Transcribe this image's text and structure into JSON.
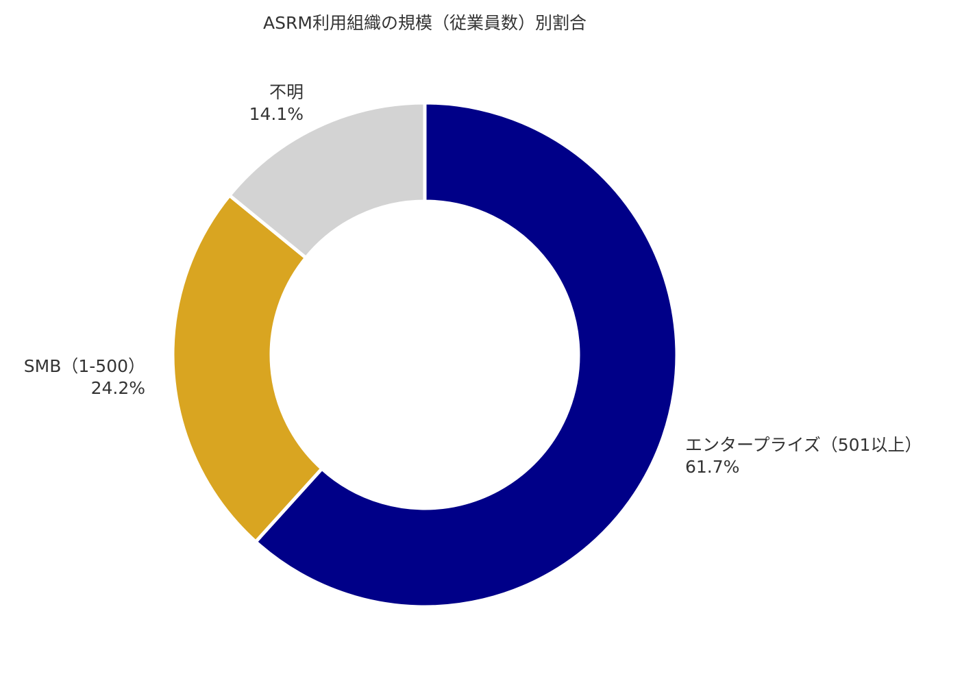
{
  "chart_data": {
    "type": "pie",
    "title": "ASRM利用組織の規模（従業員数）別割合",
    "donut": true,
    "start_angle_deg": 0,
    "direction": "clockwise",
    "slices": [
      {
        "label": "エンタープライズ（501以上）",
        "value_label": "61.7%",
        "value": 61.7,
        "color": "#000088"
      },
      {
        "label": "SMB（1-500）",
        "value_label": "24.2%",
        "value": 24.2,
        "color": "#D9A521"
      },
      {
        "label": "不明",
        "value_label": "14.1%",
        "value": 14.1,
        "color": "#D3D3D3"
      }
    ]
  }
}
